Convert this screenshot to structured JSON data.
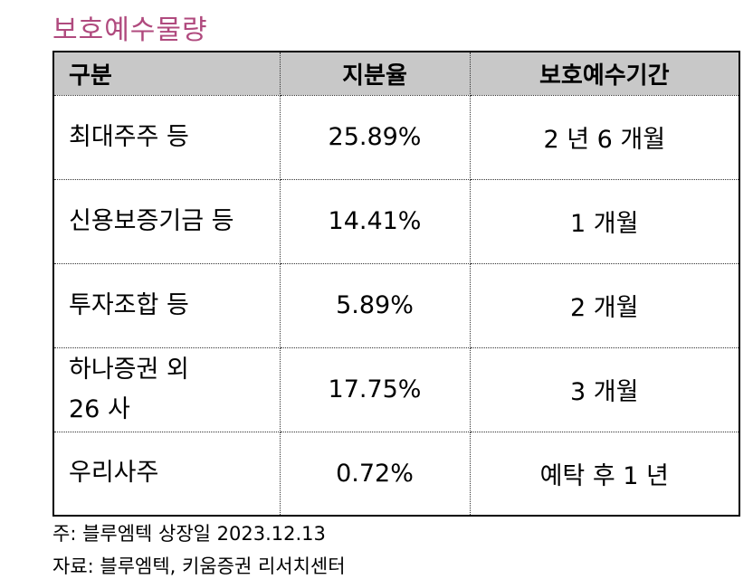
{
  "title": "보호예수물량",
  "table": {
    "headers": [
      "구분",
      "지분율",
      "보호예수기간"
    ],
    "rows": [
      {
        "name": "최대주주 등",
        "ratio": "25.89%",
        "period": "2 년 6 개월"
      },
      {
        "name": "신용보증기금 등",
        "ratio": "14.41%",
        "period": "1 개월"
      },
      {
        "name": "투자조합 등",
        "ratio": "5.89%",
        "period": "2 개월"
      },
      {
        "name": "하나증권 외 26 사",
        "ratio": "17.75%",
        "period": "3 개월"
      },
      {
        "name": "우리사주",
        "ratio": "0.72%",
        "period": "예탁 후 1 년"
      }
    ]
  },
  "notes": {
    "note": "주: 블루엠텍 상장일 2023.12.13",
    "source": "자료: 블루엠텍, 키움증권 리서치센터"
  }
}
